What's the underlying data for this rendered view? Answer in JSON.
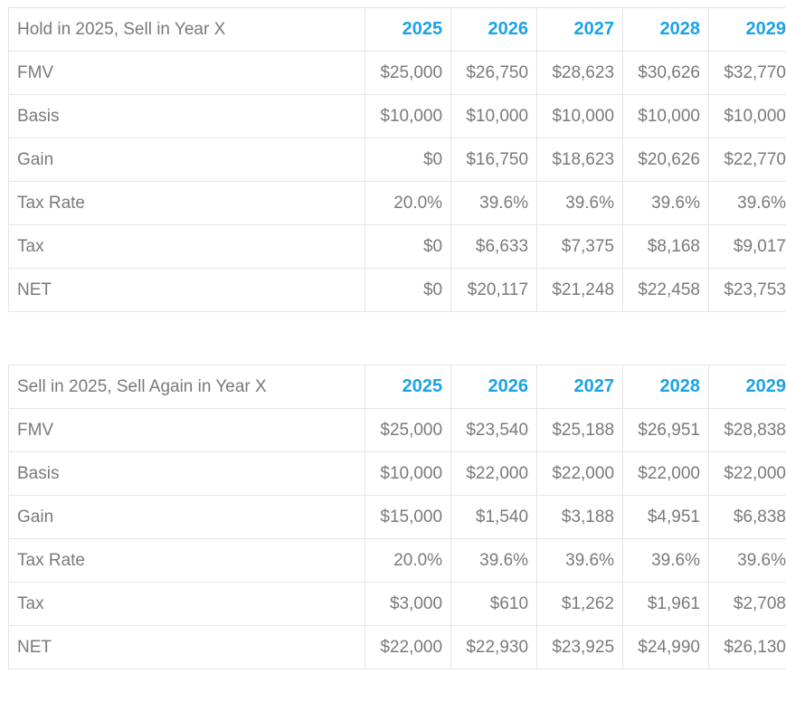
{
  "tables": [
    {
      "title": "Hold in 2025, Sell in Year X",
      "years": [
        "2025",
        "2026",
        "2027",
        "2028",
        "2029"
      ],
      "rows": [
        {
          "label": "FMV",
          "values": [
            "$25,000",
            "$26,750",
            "$28,623",
            "$30,626",
            "$32,770"
          ]
        },
        {
          "label": "Basis",
          "values": [
            "$10,000",
            "$10,000",
            "$10,000",
            "$10,000",
            "$10,000"
          ]
        },
        {
          "label": "Gain",
          "values": [
            "$0",
            "$16,750",
            "$18,623",
            "$20,626",
            "$22,770"
          ]
        },
        {
          "label": "Tax Rate",
          "values": [
            "20.0%",
            "39.6%",
            "39.6%",
            "39.6%",
            "39.6%"
          ]
        },
        {
          "label": "Tax",
          "values": [
            "$0",
            "$6,633",
            "$7,375",
            "$8,168",
            "$9,017"
          ]
        },
        {
          "label": "NET",
          "values": [
            "$0",
            "$20,117",
            "$21,248",
            "$22,458",
            "$23,753"
          ]
        }
      ]
    },
    {
      "title": "Sell in 2025, Sell Again in Year X",
      "years": [
        "2025",
        "2026",
        "2027",
        "2028",
        "2029"
      ],
      "rows": [
        {
          "label": "FMV",
          "values": [
            "$25,000",
            "$23,540",
            "$25,188",
            "$26,951",
            "$28,838"
          ]
        },
        {
          "label": "Basis",
          "values": [
            "$10,000",
            "$22,000",
            "$22,000",
            "$22,000",
            "$22,000"
          ]
        },
        {
          "label": "Gain",
          "values": [
            "$15,000",
            "$1,540",
            "$3,188",
            "$4,951",
            "$6,838"
          ]
        },
        {
          "label": "Tax Rate",
          "values": [
            "20.0%",
            "39.6%",
            "39.6%",
            "39.6%",
            "39.6%"
          ]
        },
        {
          "label": "Tax",
          "values": [
            "$3,000",
            "$610",
            "$1,262",
            "$1,961",
            "$2,708"
          ]
        },
        {
          "label": "NET",
          "values": [
            "$22,000",
            "$22,930",
            "$23,925",
            "$24,990",
            "$26,130"
          ]
        }
      ]
    }
  ],
  "colors": {
    "header_year": "#1aa3e6",
    "text": "#7a7a7a",
    "border": "#e6e6e6"
  }
}
